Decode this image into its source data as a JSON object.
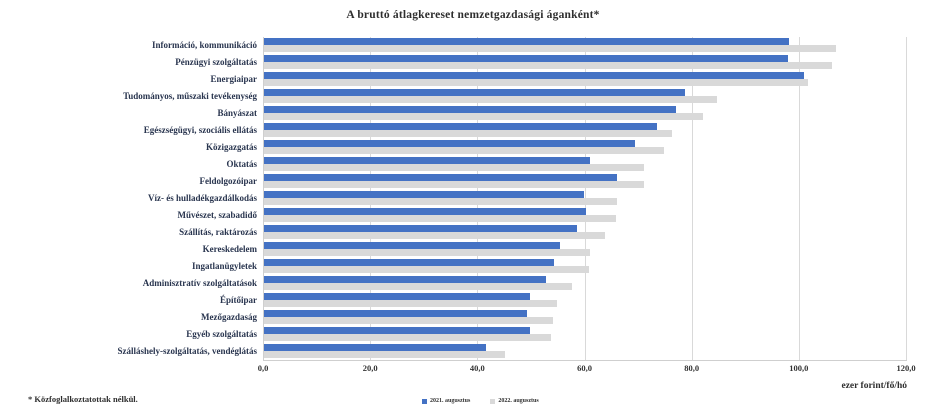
{
  "title": "A bruttó átlagkereset nemzetgazdasági áganként*",
  "footnote": "* Közfoglalkoztatottak nélkül.",
  "axis_unit_label": "ezer forint/fő/hó",
  "colors": {
    "series1_blue": "#4472C4",
    "series2_gray": "#D9D9D9",
    "gridline": "#D9D9D9",
    "text": "#2E2E2E"
  },
  "legend": [
    {
      "label": "2021. augusztus",
      "color": "#4472C4"
    },
    {
      "label": "2022. augusztus",
      "color": "#D9D9D9"
    }
  ],
  "chart_data": {
    "type": "bar",
    "orientation": "horizontal",
    "title": "A bruttó átlagkereset nemzetgazdasági áganként*",
    "xlabel": "ezer forint/fő/hó",
    "xlim": [
      0,
      120
    ],
    "xtick_values": [
      0,
      20,
      40,
      60,
      80,
      100,
      120
    ],
    "xtick_labels": [
      "0,0",
      "20,0",
      "40,0",
      "60,0",
      "80,0",
      "100,0",
      "120,0"
    ],
    "grid": true,
    "legend_position": "bottom",
    "categories": [
      "Információ, kommunikáció",
      "Pénzügyi szolgáltatás",
      "Energiaipar",
      "Tudományos, műszaki tevékenység",
      "Bányászat",
      "Egészségügyi, szociális ellátás",
      "Közigazgatás",
      "Oktatás",
      "Feldolgozóipar",
      "Víz- és hulladékgazdálkodás",
      "Művészet, szabadidő",
      "Szállítás, raktározás",
      "Kereskedelem",
      "Ingatlanügyletek",
      "Adminisztratív szolgáltatások",
      "Építőipar",
      "Mezőgazdaság",
      "Egyéb szolgáltatás",
      "Szálláshely-szolgáltatás, vendéglátás"
    ],
    "series": [
      {
        "name": "2021. augusztus",
        "color": "#4472C4",
        "values": [
          98.2,
          98.0,
          101.0,
          78.7,
          77.0,
          73.6,
          69.5,
          61.0,
          66.0,
          59.9,
          60.2,
          58.6,
          55.4,
          54.3,
          52.8,
          49.9,
          49.2,
          49.9,
          41.6
        ]
      },
      {
        "name": "2022. augusztus",
        "color": "#D9D9D9",
        "values": [
          106.9,
          106.1,
          101.8,
          84.7,
          82.1,
          76.3,
          74.8,
          71.2,
          71.1,
          66.0,
          65.8,
          63.8,
          61.0,
          60.9,
          57.7,
          54.8,
          54.2,
          53.8,
          45.1
        ]
      }
    ]
  }
}
